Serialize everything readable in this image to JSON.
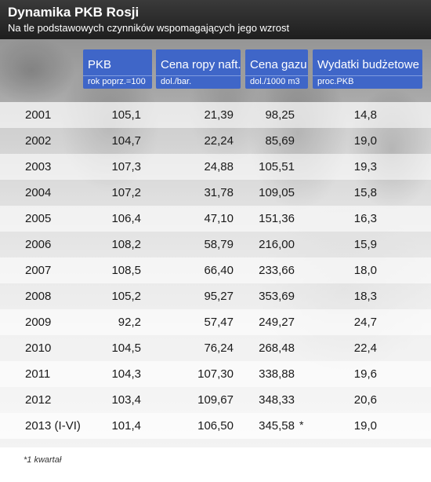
{
  "title": "Dynamika PKB Rosji",
  "subtitle": "Na tle podstawowych czynników wspomagających jego wzrost",
  "chart_data": {
    "type": "table",
    "columns": [
      {
        "name": "PKB",
        "unit": "rok poprz.=100"
      },
      {
        "name": "Cena ropy naft.",
        "unit": "dol./bar."
      },
      {
        "name": "Cena gazu",
        "unit": "dol./1000 m3"
      },
      {
        "name": "Wydatki budżetowe",
        "unit": "proc.PKB"
      }
    ],
    "rows": [
      {
        "year": "2001",
        "values": [
          "105,1",
          "21,39",
          "98,25",
          "14,8"
        ]
      },
      {
        "year": "2002",
        "values": [
          "104,7",
          "22,24",
          "85,69",
          "19,0"
        ]
      },
      {
        "year": "2003",
        "values": [
          "107,3",
          "24,88",
          "105,51",
          "19,3"
        ]
      },
      {
        "year": "2004",
        "values": [
          "107,2",
          "31,78",
          "109,05",
          "15,8"
        ]
      },
      {
        "year": "2005",
        "values": [
          "106,4",
          "47,10",
          "151,36",
          "16,3"
        ]
      },
      {
        "year": "2006",
        "values": [
          "108,2",
          "58,79",
          "216,00",
          "15,9"
        ]
      },
      {
        "year": "2007",
        "values": [
          "108,5",
          "66,40",
          "233,66",
          "18,0"
        ]
      },
      {
        "year": "2008",
        "values": [
          "105,2",
          "95,27",
          "353,69",
          "18,3"
        ]
      },
      {
        "year": "2009",
        "values": [
          "92,2",
          "57,47",
          "249,27",
          "24,7"
        ]
      },
      {
        "year": "2010",
        "values": [
          "104,5",
          "76,24",
          "268,48",
          "22,4"
        ]
      },
      {
        "year": "2011",
        "values": [
          "104,3",
          "107,30",
          "338,88",
          "19,6"
        ]
      },
      {
        "year": "2012",
        "values": [
          "103,4",
          "109,67",
          "348,33",
          "20,6"
        ]
      },
      {
        "year": "2013 (I-VI)",
        "values": [
          "101,4",
          "106,50",
          "345,58",
          "19,0"
        ],
        "marker": "*"
      }
    ],
    "footnote": "*1 kwartał"
  },
  "colors": {
    "header_bg": "#2b2b2b",
    "column_header_bg": "#3f66c8",
    "text": "#1a1a1a"
  }
}
